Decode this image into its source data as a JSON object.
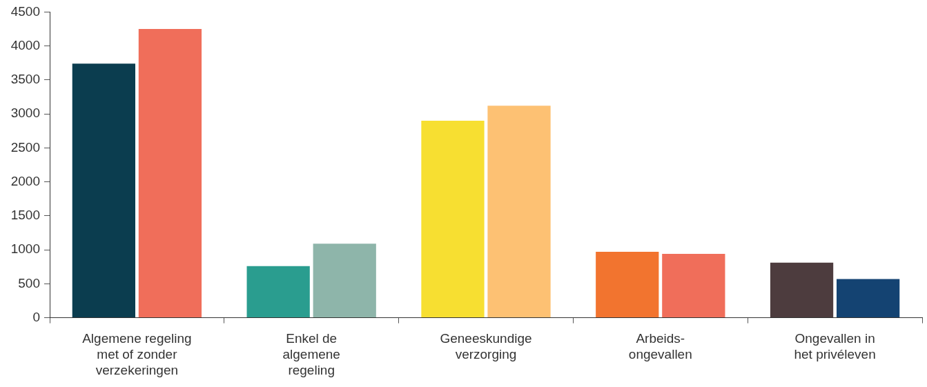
{
  "chart_data": {
    "type": "bar",
    "categories": [
      "Algemene regeling\nmet of zonder\nverzekeringen",
      "Enkel de\nalgemene\nregeling",
      "Geneeskundige\nverzorging",
      "Arbeids-\nongevallen",
      "Ongevallen in\nhet privéleven"
    ],
    "series": [
      {
        "colors": [
          "#0b3d4f",
          "#2a9d8f",
          "#f7df31",
          "#f2742f",
          "#4d3c3e"
        ],
        "values": [
          3740,
          760,
          2900,
          970,
          810
        ]
      },
      {
        "colors": [
          "#f06e5a",
          "#8eb5aa",
          "#fdc173",
          "#f06e5a",
          "#144372"
        ],
        "values": [
          4250,
          1090,
          3120,
          940,
          570
        ]
      }
    ],
    "ylim": [
      0,
      4500
    ],
    "yticks": [
      0,
      500,
      1000,
      1500,
      2000,
      2500,
      3000,
      3500,
      4000,
      4500
    ],
    "grid": false,
    "legend": false
  }
}
